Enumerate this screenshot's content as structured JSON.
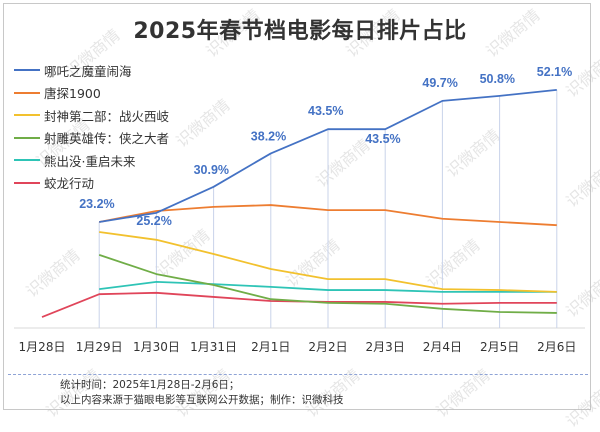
{
  "watermark": "识微商情",
  "footer": {
    "line1": "统计时间：2025年1月28日-2月6日；",
    "line2": "以上内容来源于猫眼电影等互联网公开数据；制作：识微科技"
  },
  "chart_data": {
    "type": "line",
    "title": "2025年春节档电影每日排片占比",
    "xlabel": "",
    "ylabel": "",
    "ylim": [
      0,
      55
    ],
    "grid": "vertical-drop-lines",
    "legend": "top-left",
    "x": [
      "1月28日",
      "1月29日",
      "1月30日",
      "1月31日",
      "2月1日",
      "2月2日",
      "2月3日",
      "2月4日",
      "2月5日",
      "2月6日"
    ],
    "series": [
      {
        "name": "哪吒之魔童闹海",
        "color": "#4472c4",
        "values": [
          null,
          23.2,
          25.2,
          30.9,
          38.2,
          43.5,
          43.5,
          49.7,
          50.8,
          52.1
        ],
        "labels": [
          "",
          "23.2%",
          "25.2%",
          "30.9%",
          "38.2%",
          "43.5%",
          "43.5%",
          "49.7%",
          "50.8%",
          "52.1%"
        ]
      },
      {
        "name": "唐探1900",
        "color": "#ed7d31",
        "values": [
          null,
          23.2,
          25.6,
          26.5,
          26.9,
          25.8,
          25.8,
          23.9,
          23.2,
          22.5
        ]
      },
      {
        "name": "封神第二部：战火西岐",
        "color": "#f2c12e",
        "values": [
          null,
          21.0,
          19.3,
          16.2,
          12.9,
          10.7,
          10.7,
          8.5,
          8.3,
          7.9
        ]
      },
      {
        "name": "射雕英雄传：侠之大者",
        "color": "#70ad47",
        "values": [
          null,
          16.0,
          11.8,
          9.4,
          6.3,
          5.5,
          5.3,
          4.2,
          3.5,
          3.3
        ]
      },
      {
        "name": "熊出没·重启未来",
        "color": "#2ec4b6",
        "values": [
          null,
          8.5,
          10.1,
          9.6,
          9.0,
          8.3,
          8.3,
          7.9,
          7.9,
          7.9
        ]
      },
      {
        "name": "蛟龙行动",
        "color": "#e0455a",
        "values": [
          2.4,
          7.4,
          7.7,
          6.8,
          5.9,
          5.7,
          5.7,
          5.3,
          5.5,
          5.5
        ]
      }
    ]
  }
}
